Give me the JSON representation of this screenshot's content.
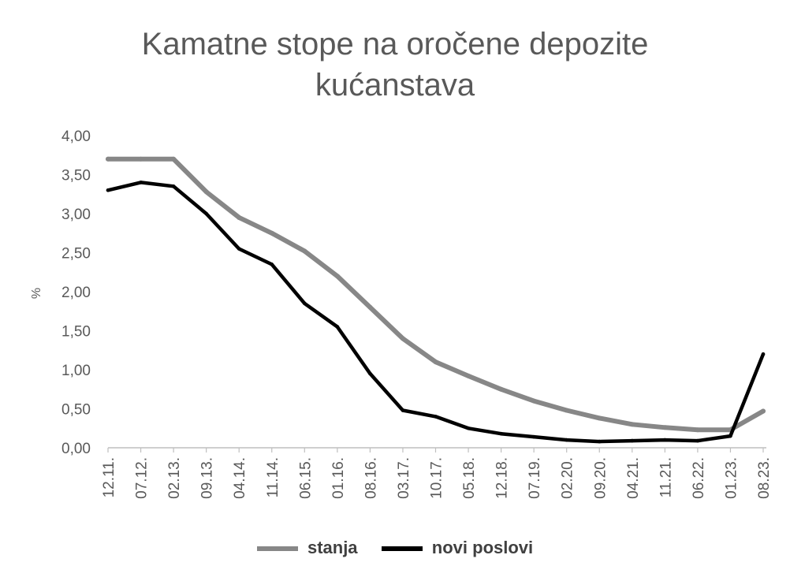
{
  "chart_data": {
    "type": "line",
    "title": [
      "Kamatne stope na oročene depozite",
      "kućanstava"
    ],
    "ylabel": "%",
    "xlabel": "",
    "ylim": [
      0,
      4
    ],
    "yticks": [
      "0,00",
      "0,50",
      "1,00",
      "1,50",
      "2,00",
      "2,50",
      "3,00",
      "3,50",
      "4,00"
    ],
    "xtick_labels": [
      "12.11.",
      "07.12.",
      "02.13.",
      "09.13.",
      "04.14.",
      "11.14.",
      "06.15.",
      "01.16.",
      "08.16.",
      "03.17.",
      "10.17.",
      "05.18.",
      "12.18.",
      "07.19.",
      "02.20.",
      "09.20.",
      "04.21.",
      "11.21.",
      "06.22.",
      "01.23.",
      "08.23."
    ],
    "legend_position": "bottom",
    "grid": false,
    "x": [
      0,
      7,
      14,
      21,
      28,
      35,
      42,
      49,
      56,
      63,
      70,
      77,
      84,
      91,
      98,
      105,
      112,
      119,
      126,
      133,
      140
    ],
    "series": [
      {
        "name": "stanja",
        "color": "#878787",
        "values": [
          3.7,
          3.7,
          3.7,
          3.28,
          2.95,
          2.75,
          2.52,
          2.2,
          1.8,
          1.4,
          1.1,
          0.92,
          0.75,
          0.6,
          0.48,
          0.38,
          0.3,
          0.26,
          0.23,
          0.23,
          0.47
        ]
      },
      {
        "name": "novi poslovi",
        "color": "#000000",
        "values": [
          3.3,
          3.4,
          3.35,
          3.0,
          2.55,
          2.35,
          1.85,
          1.55,
          0.95,
          0.48,
          0.4,
          0.25,
          0.18,
          0.14,
          0.1,
          0.08,
          0.09,
          0.1,
          0.09,
          0.15,
          1.2
        ]
      }
    ]
  }
}
